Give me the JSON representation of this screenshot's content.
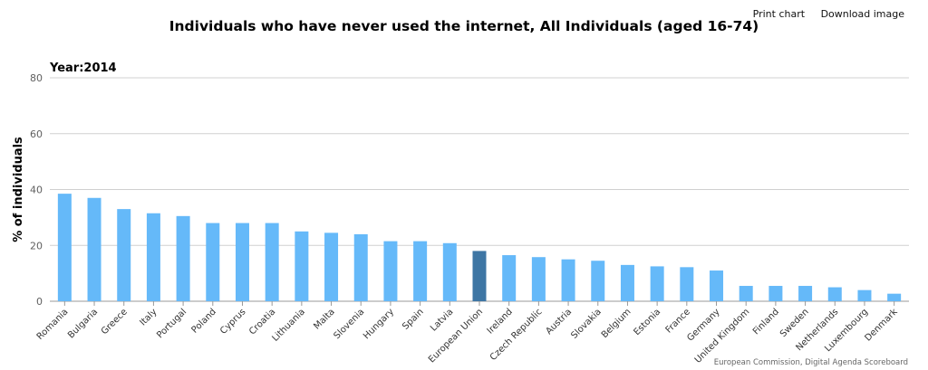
{
  "toolbar": {
    "print_label": "Print chart",
    "download_label": "Download image"
  },
  "footer": {
    "credits": "European Commission, Digital Agenda Scoreboard"
  },
  "chart_data": {
    "type": "bar",
    "title": "Individuals who have never used the internet, All Individuals (aged 16-74)",
    "subtitle": "Year:2014",
    "ylabel": "% of individuals",
    "xlabel": "",
    "ylim": [
      0,
      80
    ],
    "yticks": [
      0,
      20,
      40,
      60,
      80
    ],
    "grid": true,
    "categories": [
      "Romania",
      "Bulgaria",
      "Greece",
      "Italy",
      "Portugal",
      "Poland",
      "Cyprus",
      "Croatia",
      "Lithuania",
      "Malta",
      "Slovenia",
      "Hungary",
      "Spain",
      "Latvia",
      "European Union",
      "Ireland",
      "Czech Republic",
      "Austria",
      "Slovakia",
      "Belgium",
      "Estonia",
      "France",
      "Germany",
      "United Kingdom",
      "Finland",
      "Sweden",
      "Netherlands",
      "Luxembourg",
      "Denmark"
    ],
    "values": [
      38.5,
      37,
      33,
      31.5,
      30.5,
      28,
      28,
      28,
      25,
      24.5,
      24,
      21.5,
      21.5,
      20.8,
      18,
      16.5,
      15.8,
      15,
      14.5,
      13,
      12.5,
      12.2,
      11,
      5.5,
      5.5,
      5.5,
      5,
      4,
      2.7
    ],
    "colors": {
      "default": "#65b9f9",
      "highlight": "#3e76a4",
      "grid": "#d0d0d0",
      "axis": "#999999"
    },
    "highlight_category": "European Union"
  }
}
